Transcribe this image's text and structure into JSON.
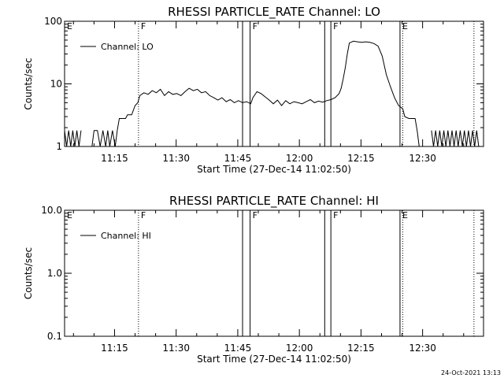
{
  "chart_data": [
    {
      "type": "line",
      "title": "RHESSI PARTICLE_RATE Channel: LO",
      "xlabel": "Start Time (27-Dec-14 11:02:50)",
      "ylabel": "Counts/sec",
      "yscale": "log",
      "ylim": [
        1,
        100
      ],
      "xlim": [
        "11:02:50",
        "12:44:50"
      ],
      "x_ticks": [
        "11:15",
        "11:30",
        "11:45",
        "12:00",
        "12:15",
        "12:30"
      ],
      "y_ticks": [
        "1",
        "10",
        "100"
      ],
      "legend": {
        "label": "Channel: LO",
        "placement": "top-left"
      },
      "events": [
        {
          "time": "11:02:50",
          "label": "E",
          "style": "solid"
        },
        {
          "time": "11:20:50",
          "label": "F",
          "style": "dotted"
        },
        {
          "time": "11:46:10",
          "label": "",
          "style": "solid"
        },
        {
          "time": "11:48:00",
          "label": "F",
          "style": "solid"
        },
        {
          "time": "12:06:10",
          "label": "",
          "style": "solid"
        },
        {
          "time": "12:07:40",
          "label": "F",
          "style": "solid"
        },
        {
          "time": "12:24:30",
          "label": "E",
          "style": "solid"
        },
        {
          "time": "12:25:10",
          "label": "",
          "style": "dotted"
        },
        {
          "time": "12:42:30",
          "label": "",
          "style": "dotted"
        }
      ],
      "series": [
        {
          "name": "Channel: LO",
          "points": [
            [
              "11:02:50",
              1.8
            ],
            [
              "11:03:20",
              1
            ],
            [
              "11:03:50",
              1.8
            ],
            [
              "11:04:20",
              1
            ],
            [
              "11:04:50",
              1.8
            ],
            [
              "11:05:20",
              1
            ],
            [
              "11:05:50",
              1.8
            ],
            [
              "11:06:20",
              1
            ],
            [
              "11:06:50",
              1.8
            ],
            [
              "11:09:30",
              1
            ],
            [
              "11:10:00",
              1.8
            ],
            [
              "11:10:50",
              1.8
            ],
            [
              "11:11:30",
              1
            ],
            [
              "11:12:10",
              1.8
            ],
            [
              "11:12:50",
              1
            ],
            [
              "11:13:20",
              1.8
            ],
            [
              "11:13:50",
              1
            ],
            [
              "11:14:30",
              1.8
            ],
            [
              "11:15:10",
              1
            ],
            [
              "11:15:40",
              1.8
            ],
            [
              "11:16:10",
              2.8
            ],
            [
              "11:17:40",
              2.8
            ],
            [
              "11:18:10",
              3.2
            ],
            [
              "11:19:10",
              3.2
            ],
            [
              "11:20:00",
              4.5
            ],
            [
              "11:20:40",
              5
            ],
            [
              "11:21:10",
              6.5
            ],
            [
              "11:22:10",
              7.2
            ],
            [
              "11:23:10",
              6.8
            ],
            [
              "11:24:10",
              7.8
            ],
            [
              "11:25:10",
              7.2
            ],
            [
              "11:26:10",
              8.2
            ],
            [
              "11:27:10",
              6.5
            ],
            [
              "11:28:10",
              7.5
            ],
            [
              "11:29:10",
              6.8
            ],
            [
              "11:30:10",
              7
            ],
            [
              "11:31:10",
              6.5
            ],
            [
              "11:32:10",
              7.5
            ],
            [
              "11:33:10",
              8.5
            ],
            [
              "11:34:10",
              7.8
            ],
            [
              "11:35:10",
              8.2
            ],
            [
              "11:36:10",
              7.2
            ],
            [
              "11:37:10",
              7.5
            ],
            [
              "11:38:10",
              6.5
            ],
            [
              "11:39:10",
              6
            ],
            [
              "11:40:10",
              5.5
            ],
            [
              "11:41:10",
              6
            ],
            [
              "11:42:10",
              5.2
            ],
            [
              "11:43:10",
              5.6
            ],
            [
              "11:44:10",
              5
            ],
            [
              "11:45:10",
              5.4
            ],
            [
              "11:46:10",
              5
            ],
            [
              "11:47:10",
              5.2
            ],
            [
              "11:48:10",
              4.8
            ],
            [
              "11:48:40",
              6
            ],
            [
              "11:49:40",
              7.5
            ],
            [
              "11:50:40",
              7
            ],
            [
              "11:51:40",
              6.2
            ],
            [
              "11:52:40",
              5.5
            ],
            [
              "11:53:40",
              4.8
            ],
            [
              "11:54:40",
              5.5
            ],
            [
              "11:55:40",
              4.5
            ],
            [
              "11:56:40",
              5.4
            ],
            [
              "11:57:40",
              4.8
            ],
            [
              "11:58:40",
              5.2
            ],
            [
              "11:59:40",
              5
            ],
            [
              "12:00:40",
              4.8
            ],
            [
              "12:01:40",
              5.2
            ],
            [
              "12:02:40",
              5.6
            ],
            [
              "12:03:40",
              5
            ],
            [
              "12:04:40",
              5.3
            ],
            [
              "12:05:40",
              5.1
            ],
            [
              "12:06:40",
              5.4
            ],
            [
              "12:07:40",
              5.6
            ],
            [
              "12:08:40",
              6
            ],
            [
              "12:09:40",
              7
            ],
            [
              "12:10:10",
              8.5
            ],
            [
              "12:10:40",
              12
            ],
            [
              "12:11:10",
              18
            ],
            [
              "12:11:40",
              30
            ],
            [
              "12:12:10",
              45
            ],
            [
              "12:13:10",
              48
            ],
            [
              "12:14:10",
              47
            ],
            [
              "12:15:10",
              46
            ],
            [
              "12:16:10",
              47
            ],
            [
              "12:17:10",
              46
            ],
            [
              "12:18:10",
              44
            ],
            [
              "12:19:10",
              40
            ],
            [
              "12:20:10",
              28
            ],
            [
              "12:21:10",
              14
            ],
            [
              "12:22:10",
              9
            ],
            [
              "12:23:10",
              6
            ],
            [
              "12:24:10",
              4.5
            ],
            [
              "12:25:10",
              4
            ],
            [
              "12:25:40",
              3
            ],
            [
              "12:26:40",
              2.8
            ],
            [
              "12:28:10",
              2.8
            ],
            [
              "12:28:40",
              1.8
            ],
            [
              "12:29:10",
              1
            ],
            [
              "12:32:10",
              1.8
            ],
            [
              "12:32:40",
              1
            ],
            [
              "12:33:10",
              1.8
            ],
            [
              "12:33:40",
              1
            ],
            [
              "12:34:10",
              1.8
            ],
            [
              "12:34:40",
              1
            ],
            [
              "12:35:10",
              1.8
            ],
            [
              "12:35:40",
              1
            ],
            [
              "12:36:10",
              1.8
            ],
            [
              "12:36:40",
              1
            ],
            [
              "12:37:10",
              1.8
            ],
            [
              "12:37:40",
              1
            ],
            [
              "12:38:10",
              1.8
            ],
            [
              "12:38:40",
              1
            ],
            [
              "12:39:10",
              1.8
            ],
            [
              "12:39:40",
              1
            ],
            [
              "12:40:10",
              1.8
            ],
            [
              "12:40:40",
              1
            ],
            [
              "12:41:10",
              1.8
            ],
            [
              "12:41:40",
              1
            ],
            [
              "12:42:10",
              1.8
            ],
            [
              "12:42:40",
              1
            ],
            [
              "12:43:10",
              1.8
            ],
            [
              "12:43:40",
              1
            ]
          ]
        }
      ]
    },
    {
      "type": "line",
      "title": "RHESSI PARTICLE_RATE Channel: HI",
      "xlabel": "Start Time (27-Dec-14 11:02:50)",
      "ylabel": "Counts/sec",
      "yscale": "log",
      "ylim": [
        0.1,
        10
      ],
      "xlim": [
        "11:02:50",
        "12:44:50"
      ],
      "x_ticks": [
        "11:15",
        "11:30",
        "11:45",
        "12:00",
        "12:15",
        "12:30"
      ],
      "y_ticks": [
        "0.1",
        "1.0",
        "10.0"
      ],
      "legend": {
        "label": "Channel: HI",
        "placement": "top-left"
      },
      "events": [
        {
          "time": "11:02:50",
          "label": "E",
          "style": "solid"
        },
        {
          "time": "11:20:50",
          "label": "F",
          "style": "dotted"
        },
        {
          "time": "11:46:10",
          "label": "",
          "style": "solid"
        },
        {
          "time": "11:48:00",
          "label": "F",
          "style": "solid"
        },
        {
          "time": "12:06:10",
          "label": "",
          "style": "solid"
        },
        {
          "time": "12:07:40",
          "label": "F",
          "style": "solid"
        },
        {
          "time": "12:24:30",
          "label": "E",
          "style": "solid"
        },
        {
          "time": "12:25:10",
          "label": "",
          "style": "dotted"
        },
        {
          "time": "12:42:30",
          "label": "",
          "style": "dotted"
        }
      ],
      "series": [
        {
          "name": "Channel: HI",
          "points": []
        }
      ]
    }
  ],
  "footer": {
    "timestamp": "24-Oct-2021 13:13"
  }
}
